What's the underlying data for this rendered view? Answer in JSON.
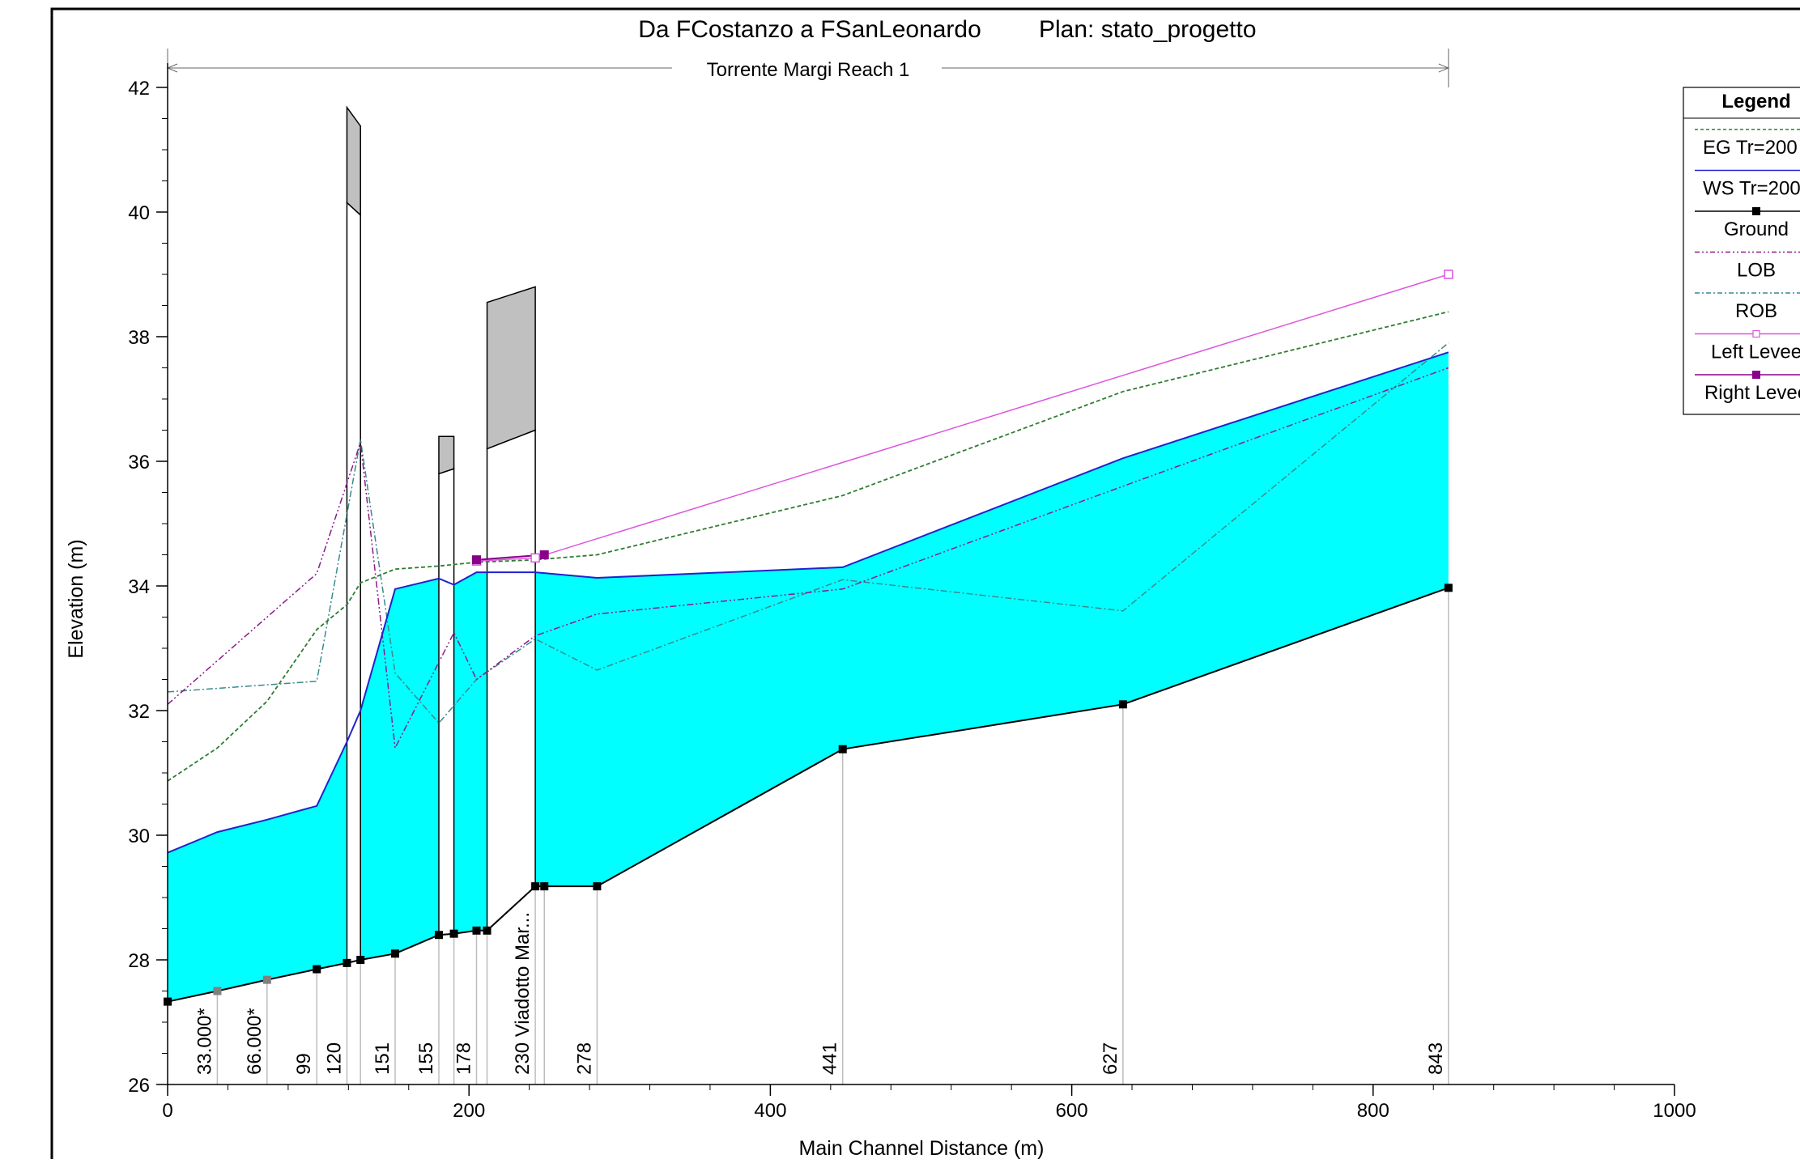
{
  "chart_data": {
    "type": "line",
    "title": "Da FCostanzo a FSanLeonardo",
    "plan_label": "Plan: stato_progetto",
    "reach_label": "Torrente Margi Reach 1",
    "xlabel": "Main Channel Distance (m)",
    "ylabel": "Elevation (m)",
    "xlim": [
      0,
      1000
    ],
    "ylim": [
      26,
      42
    ],
    "x_ticks": [
      0,
      200,
      400,
      600,
      800,
      1000
    ],
    "y_ticks": [
      26,
      28,
      30,
      32,
      34,
      36,
      38,
      40,
      42
    ],
    "reach_extent": [
      0,
      850
    ],
    "legend": {
      "title": "Legend",
      "items": [
        {
          "label": "EG  Tr=200",
          "key": "eg"
        },
        {
          "label": "WS  Tr=200",
          "key": "ws"
        },
        {
          "label": "Ground",
          "key": "ground"
        },
        {
          "label": "LOB",
          "key": "lob"
        },
        {
          "label": "ROB",
          "key": "rob"
        },
        {
          "label": "Left Levee",
          "key": "leftlevee"
        },
        {
          "label": "Right Levee",
          "key": "rightlevee"
        }
      ]
    },
    "colors": {
      "eg": "#2e7d32",
      "ws": "#2222cc",
      "ws_fill": "#00ffff",
      "ground": "#000000",
      "lob": "#8b1a8b",
      "rob": "#3a8a8a",
      "leftlevee": "#dd55dd",
      "rightlevee": "#880088",
      "bridge_fill": "#c0c0c0"
    },
    "sections": [
      {
        "x": 0,
        "label": "",
        "interpolated": false
      },
      {
        "x": 33,
        "label": "33.000*",
        "interpolated": true
      },
      {
        "x": 66,
        "label": "66.000*",
        "interpolated": true
      },
      {
        "x": 99,
        "label": "99",
        "interpolated": false
      },
      {
        "x": 119,
        "label": "120",
        "interpolated": false
      },
      {
        "x": 128,
        "label": "",
        "interpolated": false
      },
      {
        "x": 151,
        "label": "151",
        "interpolated": false
      },
      {
        "x": 180,
        "label": "155",
        "interpolated": false
      },
      {
        "x": 190,
        "label": "",
        "interpolated": false
      },
      {
        "x": 205,
        "label": "178",
        "interpolated": false
      },
      {
        "x": 212,
        "label": "",
        "interpolated": false
      },
      {
        "x": 244,
        "label": "230 Viadotto Mar...",
        "interpolated": false
      },
      {
        "x": 250,
        "label": "",
        "interpolated": false
      },
      {
        "x": 285,
        "label": "278",
        "interpolated": false
      },
      {
        "x": 448,
        "label": "441",
        "interpolated": false
      },
      {
        "x": 634,
        "label": "627",
        "interpolated": false
      },
      {
        "x": 850,
        "label": "843",
        "interpolated": false
      }
    ],
    "series": [
      {
        "name": "EG  Tr=200",
        "key": "eg",
        "x": [
          0,
          33,
          66,
          99,
          119,
          128,
          151,
          180,
          205,
          244,
          285,
          448,
          634,
          850
        ],
        "y": [
          30.87,
          31.4,
          32.15,
          33.3,
          33.7,
          34.05,
          34.27,
          34.32,
          34.38,
          34.42,
          34.5,
          35.45,
          37.12,
          38.4
        ]
      },
      {
        "name": "WS  Tr=200",
        "key": "ws",
        "x": [
          0,
          33,
          66,
          99,
          119,
          128,
          151,
          180,
          190,
          205,
          244,
          285,
          448,
          634,
          850
        ],
        "y": [
          29.72,
          30.05,
          30.25,
          30.47,
          31.5,
          32.0,
          33.95,
          34.12,
          34.02,
          34.22,
          34.22,
          34.13,
          34.3,
          36.05,
          37.75
        ]
      },
      {
        "name": "Ground",
        "key": "ground",
        "x": [
          0,
          33,
          66,
          99,
          119,
          128,
          151,
          180,
          190,
          205,
          212,
          244,
          250,
          285,
          448,
          634,
          850
        ],
        "y": [
          27.33,
          27.5,
          27.68,
          27.85,
          27.95,
          28.0,
          28.1,
          28.4,
          28.42,
          28.47,
          28.47,
          29.18,
          29.18,
          29.18,
          31.38,
          32.1,
          33.97
        ]
      },
      {
        "name": "LOB",
        "key": "lob",
        "x": [
          0,
          99,
          128,
          151,
          190,
          205,
          244,
          285,
          448,
          634,
          850
        ],
        "y": [
          32.1,
          34.2,
          36.3,
          31.4,
          33.25,
          32.5,
          33.2,
          33.55,
          33.95,
          35.6,
          37.5
        ]
      },
      {
        "name": "ROB",
        "key": "rob",
        "x": [
          0,
          99,
          128,
          151,
          180,
          205,
          244,
          285,
          448,
          634,
          850
        ],
        "y": [
          32.3,
          32.47,
          36.35,
          32.6,
          31.8,
          32.5,
          33.15,
          32.65,
          34.1,
          33.6,
          37.9
        ]
      },
      {
        "name": "Left Levee",
        "key": "leftlevee",
        "x": [
          205,
          244,
          850
        ],
        "y": [
          34.4,
          34.45,
          39.0
        ]
      },
      {
        "name": "Right Levee",
        "key": "rightlevee",
        "x": [
          205,
          250
        ],
        "y": [
          34.42,
          34.5
        ]
      }
    ],
    "bridges": [
      {
        "x1": 119,
        "x2": 128,
        "chord_left": 40.15,
        "chord_right": 39.95,
        "deck_left": 41.68,
        "deck_right": 41.38
      },
      {
        "x1": 180,
        "x2": 190,
        "chord_left": 35.8,
        "chord_right": 35.88,
        "deck_left": 36.4,
        "deck_right": 36.4
      },
      {
        "x1": 212,
        "x2": 244,
        "chord_left": 36.2,
        "chord_right": 36.5,
        "deck_left": 38.55,
        "deck_right": 38.8
      }
    ]
  }
}
